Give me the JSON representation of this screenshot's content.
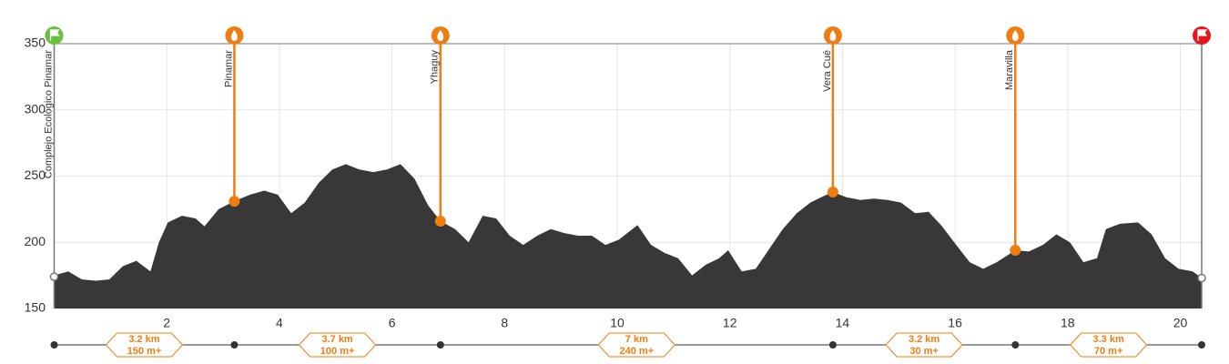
{
  "chart_data": {
    "type": "area",
    "color": "#383838",
    "grid": true,
    "xlim": [
      0,
      20.38
    ],
    "ylim": [
      150,
      350
    ],
    "xticks": [
      2,
      4,
      6,
      8,
      10,
      12,
      14,
      16,
      18,
      20
    ],
    "yticks": [
      150,
      200,
      250,
      300,
      350
    ],
    "x": [
      0,
      0.25,
      0.49,
      0.74,
      0.98,
      1.22,
      1.46,
      1.71,
      1.86,
      2.02,
      2.27,
      2.51,
      2.67,
      2.92,
      3.2,
      3.48,
      3.73,
      3.97,
      4.21,
      4.45,
      4.7,
      4.94,
      5.18,
      5.42,
      5.67,
      5.91,
      6.15,
      6.4,
      6.64,
      6.86,
      7.12,
      7.36,
      7.61,
      7.85,
      8.09,
      8.33,
      8.58,
      8.82,
      9.06,
      9.3,
      9.55,
      9.79,
      10.03,
      10.36,
      10.6,
      10.84,
      11.08,
      11.33,
      11.57,
      11.81,
      11.97,
      12.21,
      12.46,
      12.7,
      12.94,
      13.19,
      13.43,
      13.67,
      13.83,
      14.07,
      14.32,
      14.56,
      14.8,
      15.04,
      15.29,
      15.53,
      15.77,
      16.02,
      16.26,
      16.5,
      16.74,
      17.07,
      17.31,
      17.56,
      17.8,
      18.04,
      18.28,
      18.52,
      18.68,
      18.93,
      19.25,
      19.49,
      19.73,
      19.97,
      20.22,
      20.38
    ],
    "values": [
      175,
      178,
      172,
      171,
      172,
      182,
      186,
      178,
      200,
      215,
      220,
      218,
      212,
      225,
      231,
      236,
      239,
      236,
      222,
      230,
      245,
      255,
      259,
      255,
      253,
      255,
      259,
      248,
      228,
      216,
      210,
      200,
      220,
      218,
      205,
      198,
      205,
      210,
      207,
      205,
      205,
      198,
      202,
      213,
      198,
      192,
      188,
      175,
      183,
      188,
      194,
      178,
      180,
      195,
      210,
      222,
      230,
      235,
      238,
      234,
      232,
      233,
      232,
      230,
      222,
      223,
      212,
      198,
      185,
      180,
      185,
      194,
      193,
      198,
      206,
      200,
      185,
      188,
      210,
      214,
      215,
      206,
      188,
      180,
      178,
      173
    ],
    "waypoints": [
      {
        "name": "Complejo Ecológico Pinamar",
        "x": 0,
        "elevation": 174,
        "color": "#6cbf3c"
      },
      {
        "name": "Pinamar",
        "x": 3.2,
        "elevation": 231,
        "color": "#f07d12"
      },
      {
        "name": "Yhaguy",
        "x": 6.86,
        "elevation": 216,
        "color": "#f07d12"
      },
      {
        "name": "Vera Cué",
        "x": 13.83,
        "elevation": 238,
        "color": "#f07d12"
      },
      {
        "name": "Maravilla",
        "x": 17.07,
        "elevation": 194,
        "color": "#f07d12"
      },
      {
        "x": 20.38,
        "elevation": 173,
        "color": "#e8141c"
      }
    ],
    "segments": [
      {
        "distance": "3.2 km",
        "gain": "150 m+"
      },
      {
        "distance": "3.7 km",
        "gain": "100 m+"
      },
      {
        "distance": "7 km",
        "gain": "240 m+"
      },
      {
        "distance": "3.2 km",
        "gain": "30 m+"
      },
      {
        "distance": "3.3 km",
        "gain": "70 m+"
      }
    ]
  }
}
